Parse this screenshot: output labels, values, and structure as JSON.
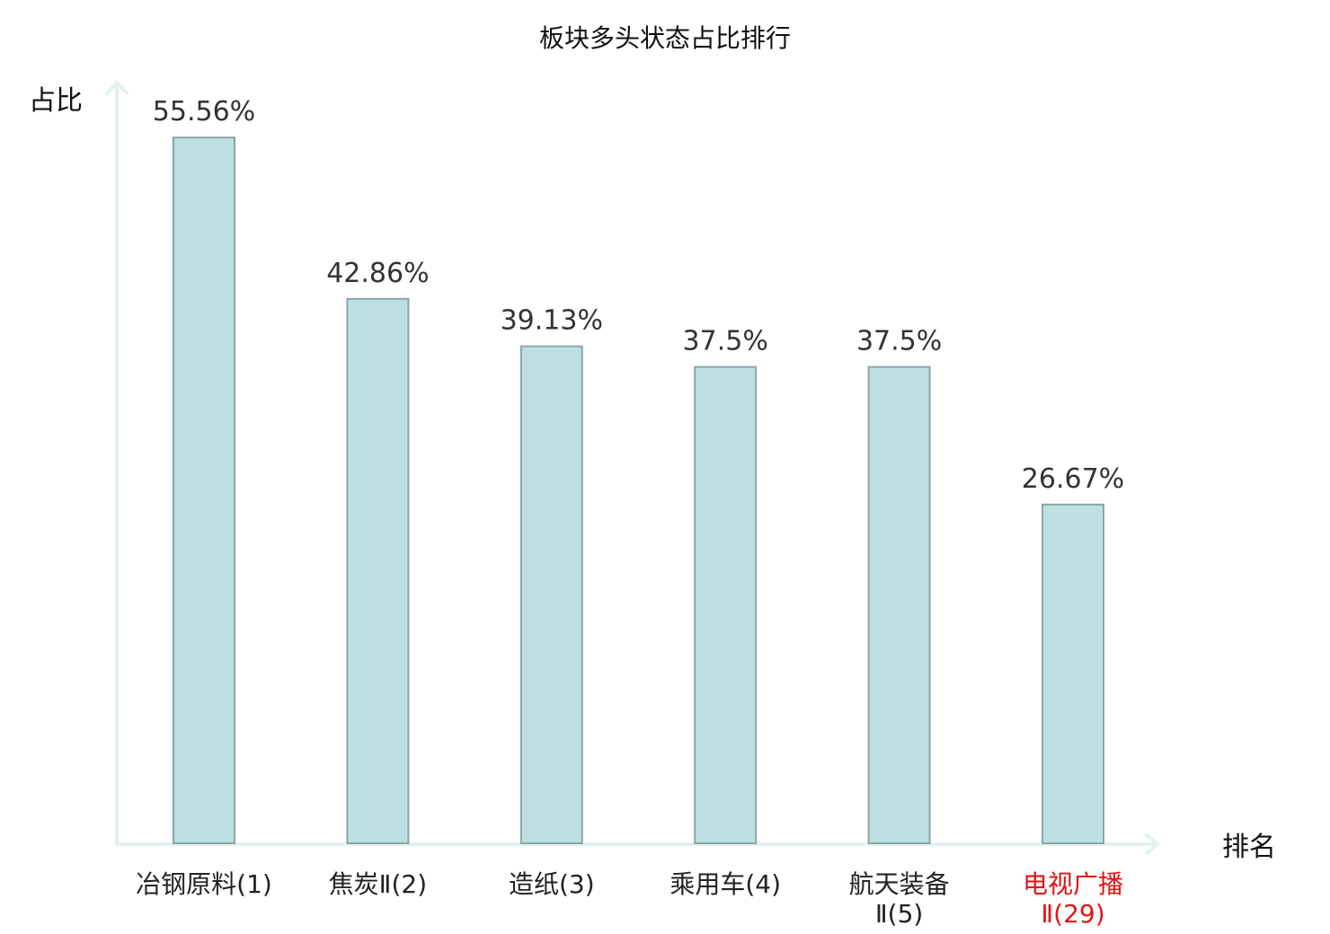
{
  "chart_data": {
    "type": "bar",
    "title": "板块多头状态占比排行",
    "ylabel": "占比",
    "xlabel": "排名",
    "ylim": [
      0,
      60
    ],
    "grid": false,
    "categories": [
      [
        "冶钢原料(1)"
      ],
      [
        "焦炭Ⅱ(2)"
      ],
      [
        "造纸(3)"
      ],
      [
        "乘用车(4)"
      ],
      [
        "航天装备",
        "Ⅱ(5)"
      ],
      [
        "电视广播",
        "Ⅱ(29)"
      ]
    ],
    "values": [
      55.56,
      42.86,
      39.13,
      37.5,
      37.5,
      26.67
    ],
    "value_labels": [
      "55.56%",
      "42.86%",
      "39.13%",
      "37.5%",
      "37.5%",
      "26.67%"
    ],
    "highlight_index": 5,
    "colors": {
      "bar_fill": "#bce0e2",
      "bar_stroke": "#8aa6a8",
      "axis": "#e2f2f0",
      "highlight_label": "#e31414",
      "label": "#222222"
    }
  }
}
